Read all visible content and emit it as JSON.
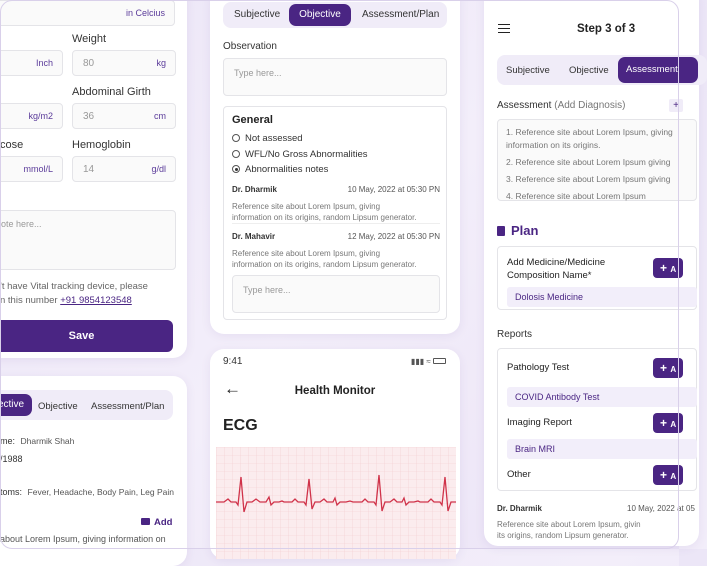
{
  "vitals_card": {
    "temp_unit": "in Celcius",
    "weight_label": "Weight",
    "height_unit": "Inch",
    "weight_placeholder": "80",
    "weight_unit": "kg",
    "bmi_unit": "kg/m2",
    "abd_label": "Abdominal Girth",
    "abd_placeholder": "36",
    "abd_unit": "cm",
    "glucose_label": "cose",
    "glucose_unit": "mmol/L",
    "hb_label": "Hemoglobin",
    "hb_placeholder": "14",
    "hb_unit": "g/dl",
    "notes_placeholder": "ote here...",
    "help_line1": "'t have Vital tracking device, please",
    "help_line2_prefix": "n this number ",
    "help_phone": "+91 9854123548",
    "save_label": "Save"
  },
  "summary_card": {
    "tabs": [
      "ective",
      "Objective",
      "Assessment/Plan"
    ],
    "name_label": "me:",
    "name_value": "Dharmik Shah",
    "dob": "/1988",
    "symptoms_label": "toms:",
    "symptoms_value": "Fever, Headache, Body Pain, Leg Pain",
    "add_label": "Add",
    "footer_text": "about Lorem Ipsum, giving information on"
  },
  "objective_card": {
    "tabs": [
      "Subjective",
      "Objective",
      "Assessment/Plan"
    ],
    "observation_label": "Observation",
    "observation_placeholder": "Type here...",
    "general_title": "General",
    "options": [
      "Not assessed",
      "WFL/No Gross Abnormalities",
      "Abnormalities notes"
    ],
    "notes": [
      {
        "author": "Dr. Dharmik",
        "date": "10 May, 2022 at 05:30 PN",
        "text1": "Reference site about Lorem Ipsum, giving",
        "text2": "information on its origins, random Lipsum generator."
      },
      {
        "author": "Dr. Mahavir",
        "date": "12 May, 2022 at 05:30 PN",
        "text1": "Reference site about Lorem Ipsum, giving",
        "text2": "information on its origins, random Lipsum generator."
      }
    ],
    "reply_placeholder": "Type here..."
  },
  "ecg_card": {
    "time": "9:41",
    "title": "Health Monitor",
    "section": "ECG"
  },
  "plan_card": {
    "step": "Step 3 of 3",
    "tabs": [
      "Subjective",
      "Objective",
      "Assessment"
    ],
    "assessment_label": "Assessment",
    "assessment_hint": "(Add Diagnosis)",
    "refs": [
      "1. Reference site about Lorem Ipsum, giving",
      "information on its origins.",
      "2. Reference site about Lorem Ipsum giving",
      "3. Reference site about Lorem Ipsum giving",
      "4. Reference site about Lorem Ipsum"
    ],
    "plan_title": "Plan",
    "medicine_label_1": "Add Medicine/Medicine",
    "medicine_label_2": "Composition Name*",
    "medicine_chip": "Dolosis Medicine",
    "reports_label": "Reports",
    "pathology_label": "Pathology Test",
    "pathology_chip": "COVID Antibody Test",
    "imaging_label": "Imaging Report",
    "imaging_chip": "Brain MRI",
    "other_label": "Other",
    "add_text": "A",
    "note_author": "Dr. Dharmik",
    "note_date": "10 May, 2022 at 05",
    "note_text1": "Reference site about Lorem Ipsum, givin",
    "note_text2": "its origins, random Lipsum generator."
  },
  "colors": {
    "accent": "#4a2583",
    "link": "#4a2583",
    "ecg_line": "#d0334a",
    "ecg_bg": "#fbecee"
  }
}
